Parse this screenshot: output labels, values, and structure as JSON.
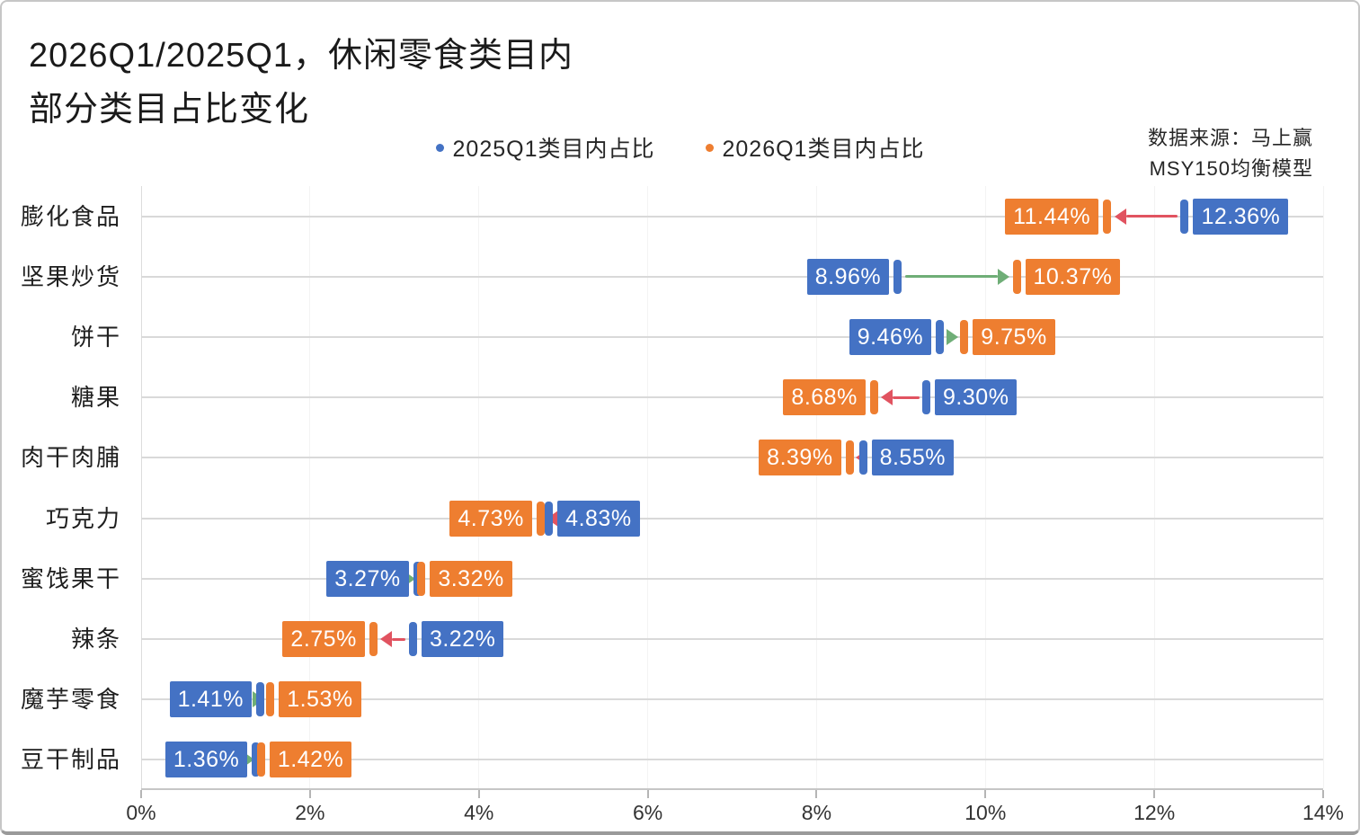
{
  "title": "2026Q1/2025Q1，休闲零食类目内\n部分类目占比变化",
  "source": "数据来源：马上赢\nMSY150均衡模型",
  "legend": {
    "items": [
      {
        "label": "2025Q1类目内占比",
        "color": "#4472C4"
      },
      {
        "label": "2026Q1类目内占比",
        "color": "#EE7E30"
      }
    ]
  },
  "chart_data": {
    "type": "dumbbell",
    "orientation": "horizontal",
    "title": "2026Q1/2025Q1，休闲零食类目内部分类目占比变化",
    "categories": [
      "膨化食品",
      "坚果炒货",
      "饼干",
      "糖果",
      "肉干肉脯",
      "巧克力",
      "蜜饯果干",
      "辣条",
      "魔芋零食",
      "豆干制品"
    ],
    "series": [
      {
        "name": "2025Q1类目内占比",
        "color": "#4472C4",
        "values": [
          12.36,
          8.96,
          9.46,
          9.3,
          8.55,
          4.83,
          3.27,
          3.22,
          1.41,
          1.36
        ],
        "labels": [
          "12.36%",
          "8.96%",
          "9.46%",
          "9.30%",
          "8.55%",
          "4.83%",
          "3.27%",
          "3.22%",
          "1.41%",
          "1.36%"
        ]
      },
      {
        "name": "2026Q1类目内占比",
        "color": "#EE7E30",
        "values": [
          11.44,
          10.37,
          9.75,
          8.68,
          8.39,
          4.73,
          3.32,
          2.75,
          1.53,
          1.42
        ],
        "labels": [
          "11.44%",
          "10.37%",
          "9.75%",
          "8.68%",
          "8.39%",
          "4.73%",
          "3.32%",
          "2.75%",
          "1.53%",
          "1.42%"
        ]
      }
    ],
    "xlim": [
      0,
      14
    ],
    "xticks": [
      "0%",
      "2%",
      "4%",
      "6%",
      "8%",
      "10%",
      "12%",
      "14%"
    ],
    "arrow_increase_color": "#6FAE77",
    "arrow_decrease_color": "#E15360",
    "grid": {
      "horizontal": true,
      "vertical": true
    },
    "legend_position": "top-center",
    "value_labels": "outside-ends"
  }
}
